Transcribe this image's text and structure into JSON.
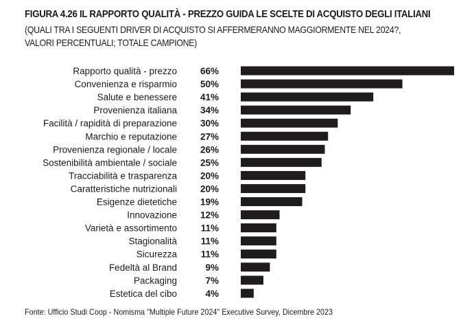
{
  "chart_data": {
    "type": "bar",
    "orientation": "horizontal",
    "title": "FIGURA 4.26 IL RAPPORTO QUALITÀ - PREZZO GUIDA LE SCELTE DI ACQUISTO DEGLI ITALIANI",
    "subtitle": "(QUALI TRA I SEGUENTI DRIVER DI ACQUISTO SI AFFERMERANNO MAGGIORMENTE NEL 2024?, VALORI PERCENTUALI; TOTALE CAMPIONE)",
    "categories": [
      "Rapporto qualità - prezzo",
      "Convenienza e risparmio",
      "Salute e benessere",
      "Provenienza italiana",
      "Facilità / rapidità di preparazione",
      "Marchio e reputazione",
      "Provenienza regionale / locale",
      "Sostenibilità ambientale / sociale",
      "Tracciabilità e trasparenza",
      "Caratteristiche nutrizionali",
      "Esigenze dietetiche",
      "Innovazione",
      "Varietà e assortimento",
      "Stagionalità",
      "Sicurezza",
      "Fedeltà al Brand",
      "Packaging",
      "Estetica del cibo"
    ],
    "values": [
      66,
      50,
      41,
      34,
      30,
      27,
      26,
      25,
      20,
      20,
      19,
      12,
      11,
      11,
      11,
      9,
      7,
      4
    ],
    "value_labels": [
      "66%",
      "50%",
      "41%",
      "34%",
      "30%",
      "27%",
      "26%",
      "25%",
      "20%",
      "20%",
      "19%",
      "12%",
      "11%",
      "11%",
      "11%",
      "9%",
      "7%",
      "4%"
    ],
    "xlim": [
      0,
      66
    ],
    "grid": false,
    "bar_color": "#1e1c1c"
  },
  "source": "Fonte: Ufficio Studi Coop - Nomisma \"Multiple Future 2024\" Executive Survey, Dicembre 2023"
}
